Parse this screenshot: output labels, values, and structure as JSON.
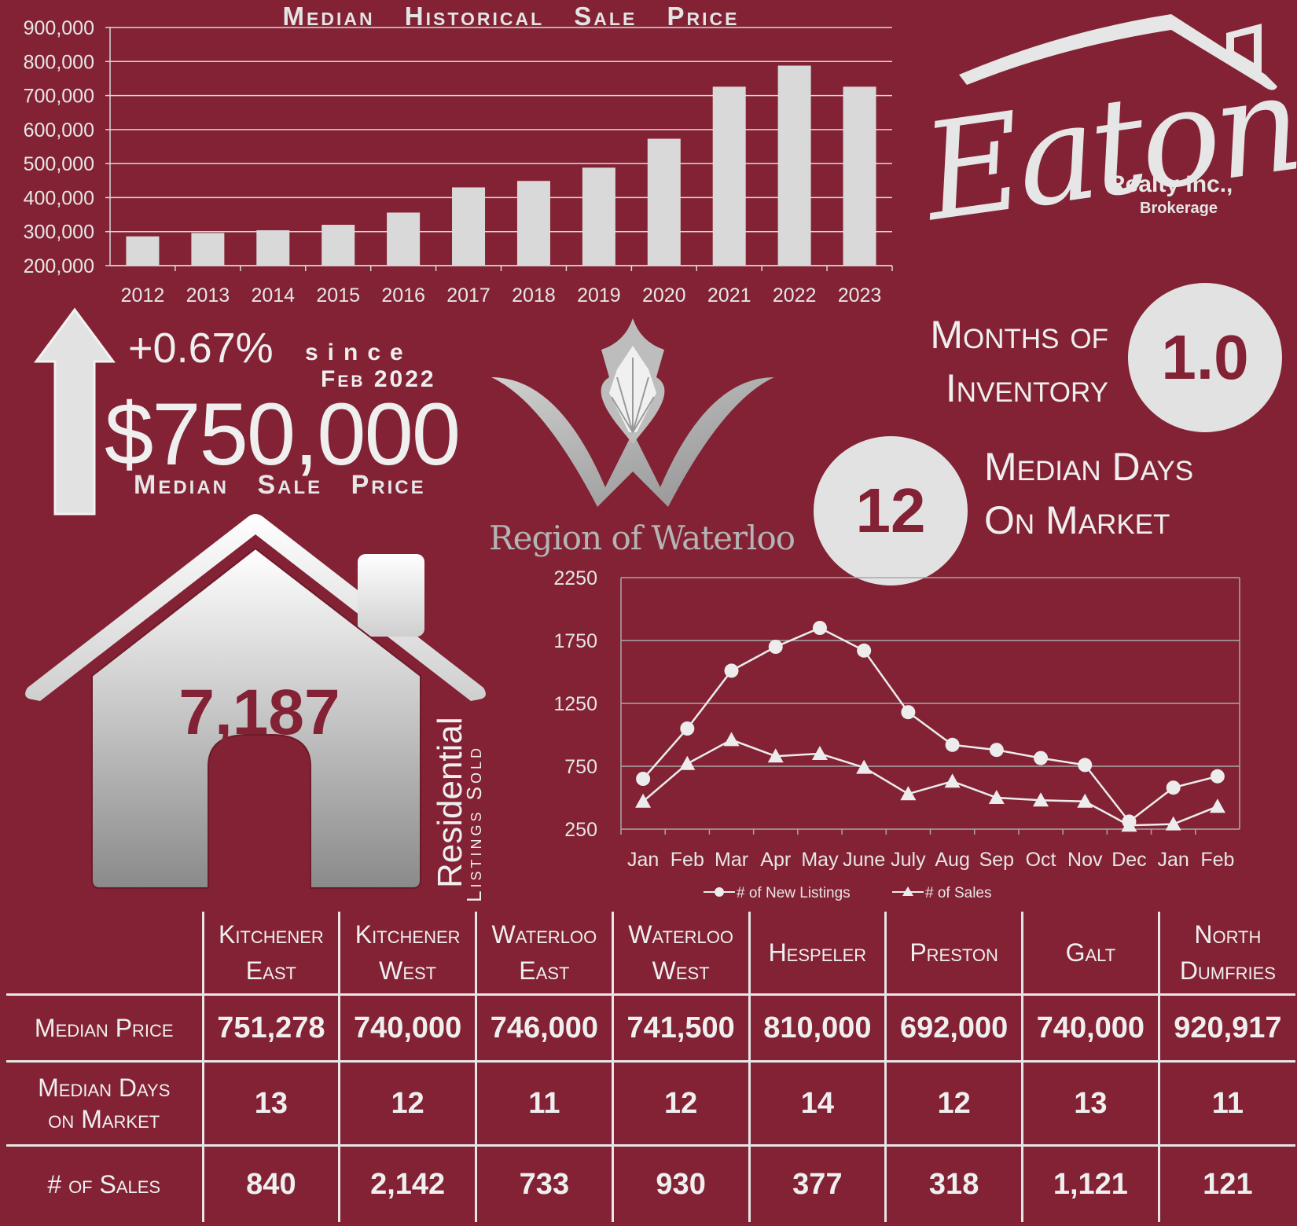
{
  "chart_data": [
    {
      "type": "bar",
      "title": "Median Historical Sale Price",
      "categories": [
        "2012",
        "2013",
        "2014",
        "2015",
        "2016",
        "2017",
        "2018",
        "2019",
        "2020",
        "2021",
        "2022",
        "2023"
      ],
      "values": [
        286000,
        296000,
        304000,
        320000,
        356000,
        430000,
        449000,
        488000,
        573000,
        726000,
        788000,
        726000
      ],
      "ylim": [
        200000,
        900000
      ],
      "yticks": [
        "200,000",
        "300,000",
        "400,000",
        "500,000",
        "600,000",
        "700,000",
        "800,000",
        "900,000"
      ],
      "bar_color": "#d9d9d9",
      "grid": true
    },
    {
      "type": "line",
      "categories": [
        "Jan",
        "Feb",
        "Mar",
        "Apr",
        "May",
        "June",
        "July",
        "Aug",
        "Sep",
        "Oct",
        "Nov",
        "Dec",
        "Jan",
        "Feb"
      ],
      "ylim": [
        250,
        2250
      ],
      "yticks": [
        "250",
        "750",
        "1250",
        "1750",
        "2250"
      ],
      "series": [
        {
          "name": "# of New Listings",
          "marker": "circle",
          "values": [
            650,
            1050,
            1510,
            1700,
            1850,
            1670,
            1180,
            920,
            880,
            815,
            760,
            310,
            580,
            670
          ]
        },
        {
          "name": "# of Sales",
          "marker": "triangle",
          "values": [
            470,
            770,
            960,
            830,
            850,
            740,
            530,
            630,
            500,
            480,
            470,
            280,
            290,
            430
          ]
        }
      ],
      "legend_position": "bottom",
      "grid": true
    }
  ],
  "logo": {
    "brand": "Eaton",
    "realty": "Realty Inc.,",
    "brokerage": "Brokerage"
  },
  "summary": {
    "pct_change": "+0.67%",
    "since": "since",
    "since_date": "Feb 2022",
    "median_price": "$750,000",
    "median_price_label": "Median Sale Price"
  },
  "region": {
    "name": "Region of Waterloo"
  },
  "inventory": {
    "label_line1": "Months of",
    "label_line2": "Inventory",
    "value": "1.0"
  },
  "days_on_market": {
    "value": "12",
    "label_line1": "Median Days",
    "label_line2": "On Market"
  },
  "listings": {
    "value": "7,187",
    "label1": "Residential",
    "label2": "Listings Sold"
  },
  "colors": {
    "background": "#822234",
    "light": "#e2e2e2"
  },
  "table": {
    "columns": [
      {
        "line1": "Kitchener",
        "line2": "East"
      },
      {
        "line1": "Kitchener",
        "line2": "West"
      },
      {
        "line1": "Waterloo",
        "line2": "East"
      },
      {
        "line1": "Waterloo",
        "line2": "West"
      },
      {
        "line1": "Hespeler",
        "line2": ""
      },
      {
        "line1": "Preston",
        "line2": ""
      },
      {
        "line1": "Galt",
        "line2": ""
      },
      {
        "line1": "North",
        "line2": "Dumfries"
      }
    ],
    "rows": [
      {
        "label1": "Median Price",
        "label2": "",
        "values": [
          "751,278",
          "740,000",
          "746,000",
          "741,500",
          "810,000",
          "692,000",
          "740,000",
          "920,917"
        ]
      },
      {
        "label1": "Median Days",
        "label2": "on Market",
        "values": [
          "13",
          "12",
          "11",
          "12",
          "14",
          "12",
          "13",
          "11"
        ]
      },
      {
        "label1": "# of Sales",
        "label2": "",
        "values": [
          "840",
          "2,142",
          "733",
          "930",
          "377",
          "318",
          "1,121",
          "121"
        ]
      }
    ]
  }
}
